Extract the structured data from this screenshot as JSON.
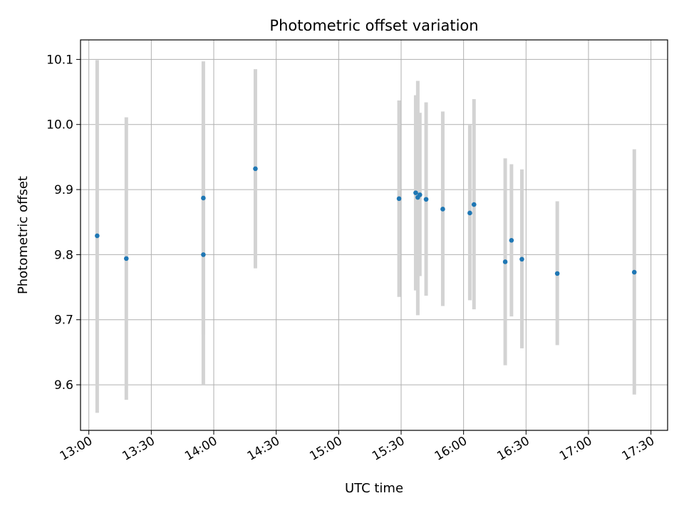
{
  "chart_data": {
    "type": "scatter",
    "title": "Photometric offset variation",
    "xlabel": "UTC time",
    "ylabel": "Photometric offset",
    "x_ticks": [
      "13:00",
      "13:30",
      "14:00",
      "14:30",
      "15:00",
      "15:30",
      "16:00",
      "16:30",
      "17:00",
      "17:30"
    ],
    "y_ticks": [
      "9.6",
      "9.7",
      "9.8",
      "9.9",
      "10.0",
      "10.1"
    ],
    "xlim": [
      "12:56",
      "17:38"
    ],
    "ylim": [
      9.53,
      10.13
    ],
    "grid": true,
    "colors": {
      "point": "#1f77b4",
      "errorbar": "#d3d3d3",
      "grid": "#b0b0b0"
    },
    "points": [
      {
        "time": "13:04",
        "y": 9.829,
        "low": 9.557,
        "high": 10.099
      },
      {
        "time": "13:18",
        "y": 9.794,
        "low": 9.577,
        "high": 10.011
      },
      {
        "time": "13:55",
        "y": 9.8,
        "low": 9.6,
        "high": 10.0
      },
      {
        "time": "13:55",
        "y": 9.887,
        "low": 9.677,
        "high": 10.097
      },
      {
        "time": "14:20",
        "y": 9.932,
        "low": 9.779,
        "high": 10.085
      },
      {
        "time": "15:29",
        "y": 9.886,
        "low": 9.735,
        "high": 10.037
      },
      {
        "time": "15:37",
        "y": 9.895,
        "low": 9.745,
        "high": 10.045
      },
      {
        "time": "15:38",
        "y": 9.888,
        "low": 9.707,
        "high": 10.067
      },
      {
        "time": "15:39",
        "y": 9.892,
        "low": 9.767,
        "high": 10.018
      },
      {
        "time": "15:42",
        "y": 9.885,
        "low": 9.737,
        "high": 10.034
      },
      {
        "time": "15:50",
        "y": 9.87,
        "low": 9.721,
        "high": 10.02
      },
      {
        "time": "16:03",
        "y": 9.864,
        "low": 9.73,
        "high": 9.999
      },
      {
        "time": "16:05",
        "y": 9.877,
        "low": 9.716,
        "high": 10.039
      },
      {
        "time": "16:20",
        "y": 9.789,
        "low": 9.63,
        "high": 9.948
      },
      {
        "time": "16:23",
        "y": 9.822,
        "low": 9.705,
        "high": 9.939
      },
      {
        "time": "16:28",
        "y": 9.793,
        "low": 9.656,
        "high": 9.931
      },
      {
        "time": "16:45",
        "y": 9.771,
        "low": 9.661,
        "high": 9.882
      },
      {
        "time": "17:22",
        "y": 9.773,
        "low": 9.585,
        "high": 9.962
      }
    ]
  }
}
